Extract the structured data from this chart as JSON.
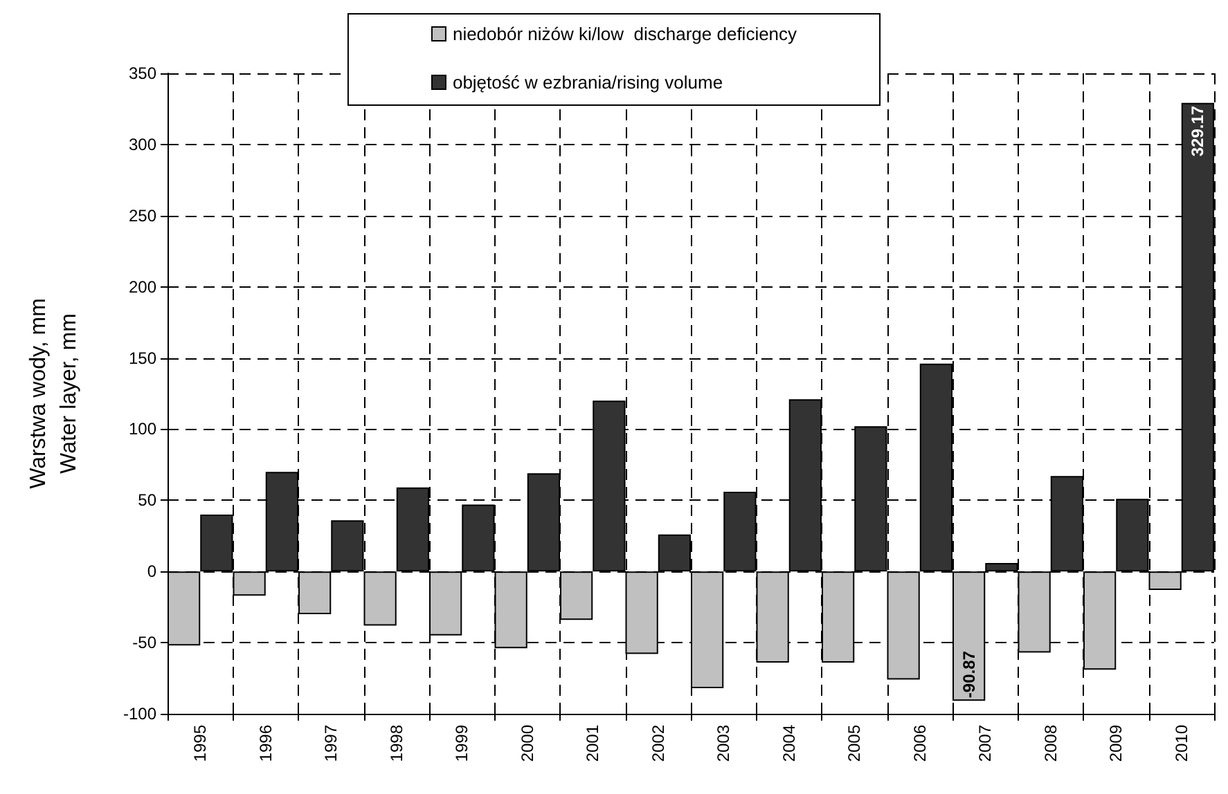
{
  "chart_data": {
    "type": "bar",
    "ylabel": "Warstwa wody, mm\nWater layer, mm",
    "categories": [
      "1995",
      "1996",
      "1997",
      "1998",
      "1999",
      "2000",
      "2001",
      "2002",
      "2003",
      "2004",
      "2005",
      "2006",
      "2007",
      "2008",
      "2009",
      "2010"
    ],
    "series": [
      {
        "name": "niedobór niżów ki/low  discharge deficiency",
        "color": "#c0c0c0",
        "values": [
          -52,
          -17,
          -30,
          -38,
          -45,
          -54,
          -34,
          -58,
          -82,
          -64,
          -64,
          -76,
          -90.87,
          -57,
          -69,
          -13
        ],
        "value_labels": [
          null,
          null,
          null,
          null,
          null,
          null,
          null,
          null,
          null,
          null,
          null,
          null,
          "-90.87",
          null,
          null,
          null
        ]
      },
      {
        "name": "objętość w ezbrania/rising volume",
        "color": "#333333",
        "values": [
          40,
          70,
          36,
          59,
          47,
          69,
          120,
          26,
          56,
          121,
          102,
          146,
          6,
          67,
          51,
          329.17
        ],
        "value_labels": [
          null,
          null,
          null,
          null,
          null,
          null,
          null,
          null,
          null,
          null,
          null,
          null,
          null,
          null,
          null,
          "329.17"
        ]
      }
    ],
    "ylim": [
      -100,
      350
    ],
    "yticks": [
      -100,
      -50,
      0,
      50,
      100,
      150,
      200,
      250,
      300,
      350
    ],
    "grid": true,
    "legend": "top"
  }
}
